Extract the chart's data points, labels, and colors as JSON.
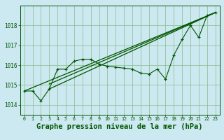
{
  "background_color": "#cce8f0",
  "plot_bg_color": "#cce8f0",
  "grid_color": "#88bb88",
  "line_color": "#005500",
  "xlabel": "Graphe pression niveau de la mer (hPa)",
  "xlabel_fontsize": 7.5,
  "xlim": [
    -0.5,
    23.5
  ],
  "ylim": [
    1013.5,
    1019.0
  ],
  "yticks": [
    1014,
    1015,
    1016,
    1017,
    1018
  ],
  "xticks": [
    0,
    1,
    2,
    3,
    4,
    5,
    6,
    7,
    8,
    9,
    10,
    11,
    12,
    13,
    14,
    15,
    16,
    17,
    18,
    19,
    20,
    21,
    22,
    23
  ],
  "series1_x": [
    0,
    1,
    2,
    3,
    4,
    5,
    6,
    7,
    8,
    9,
    10,
    11,
    12,
    13,
    14,
    15,
    16,
    17,
    18,
    19,
    20,
    21,
    22,
    23
  ],
  "series1_y": [
    1014.7,
    1014.7,
    1014.2,
    1014.8,
    1015.8,
    1015.8,
    1016.2,
    1016.3,
    1016.3,
    1016.05,
    1015.95,
    1015.9,
    1015.85,
    1015.8,
    1015.6,
    1015.55,
    1015.8,
    1015.3,
    1016.5,
    1017.3,
    1018.0,
    1017.4,
    1018.5,
    1018.65
  ],
  "series2_x": [
    0,
    23
  ],
  "series2_y": [
    1014.7,
    1018.65
  ],
  "series3_x": [
    3,
    23
  ],
  "series3_y": [
    1014.8,
    1018.65
  ],
  "series4_x": [
    3,
    23
  ],
  "series4_y": [
    1015.05,
    1018.65
  ]
}
